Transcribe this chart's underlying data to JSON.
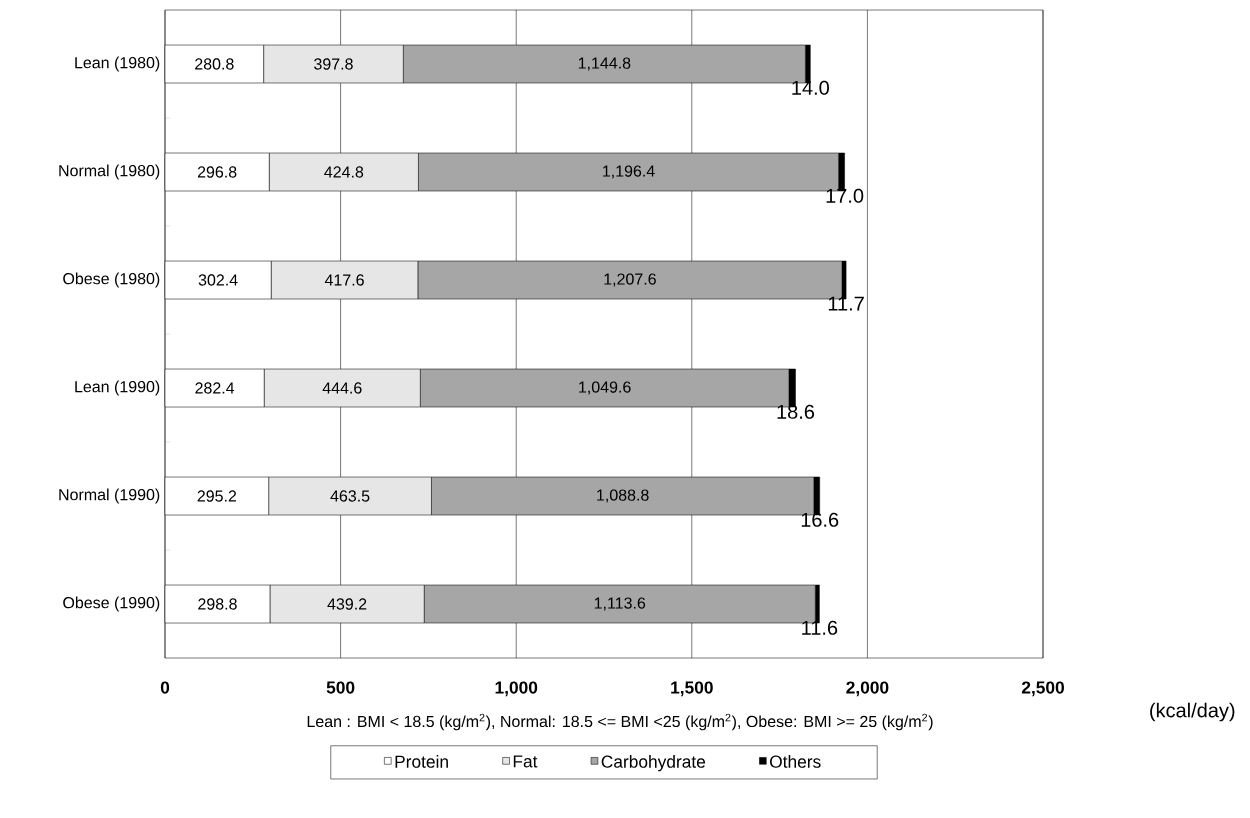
{
  "chart_data": {
    "type": "bar",
    "orientation": "horizontal",
    "stacked": true,
    "categories": [
      "Lean (1980)",
      "Normal (1980)",
      "Obese (1980)",
      "Lean (1990)",
      "Normal (1990)",
      "Obese (1990)"
    ],
    "series": [
      {
        "name": "Protein",
        "color": "#ffffff",
        "values": [
          280.8,
          296.8,
          302.4,
          282.4,
          295.2,
          298.8
        ],
        "value_labels": [
          "280.8",
          "296.8",
          "302.4",
          "282.4",
          "295.2",
          "298.8"
        ]
      },
      {
        "name": "Fat",
        "color": "#e6e6e6",
        "values": [
          397.8,
          424.8,
          417.6,
          444.6,
          463.5,
          439.2
        ],
        "value_labels": [
          "397.8",
          "424.8",
          "417.6",
          "444.6",
          "463.5",
          "439.2"
        ]
      },
      {
        "name": "Carbohydrate",
        "color": "#a6a6a6",
        "values": [
          1144.8,
          1196.4,
          1207.6,
          1049.6,
          1088.8,
          1113.6
        ],
        "value_labels": [
          "1,144.8",
          "1,196.4",
          "1,207.6",
          "1,049.6",
          "1,088.8",
          "1,113.6"
        ]
      },
      {
        "name": "Others",
        "color": "#000000",
        "values": [
          14.0,
          17.0,
          11.7,
          18.6,
          16.6,
          11.6
        ],
        "value_labels": [
          "14.0",
          "17.0",
          "11.7",
          "18.6",
          "16.6",
          "11.6"
        ]
      }
    ],
    "xlim": [
      0,
      2500
    ],
    "xticks": [
      0,
      500,
      {
        "value": 1000,
        "label": "1,000"
      },
      {
        "value": 1500,
        "label": "1,500"
      },
      {
        "value": 2000,
        "label": "2,000"
      },
      {
        "value": 2500,
        "label": "2,500"
      }
    ],
    "xlabel": "(kcal/day)",
    "grid": "x",
    "legend": "bottom",
    "annotations": [
      "Lean : BMI < 18.5 (kg/m$^{2}$), Normal: 18.5 <= BMI <25 (kg/m$^{2}$), Obese: BMI >= 25 (kg/m$^{2}$)"
    ]
  }
}
